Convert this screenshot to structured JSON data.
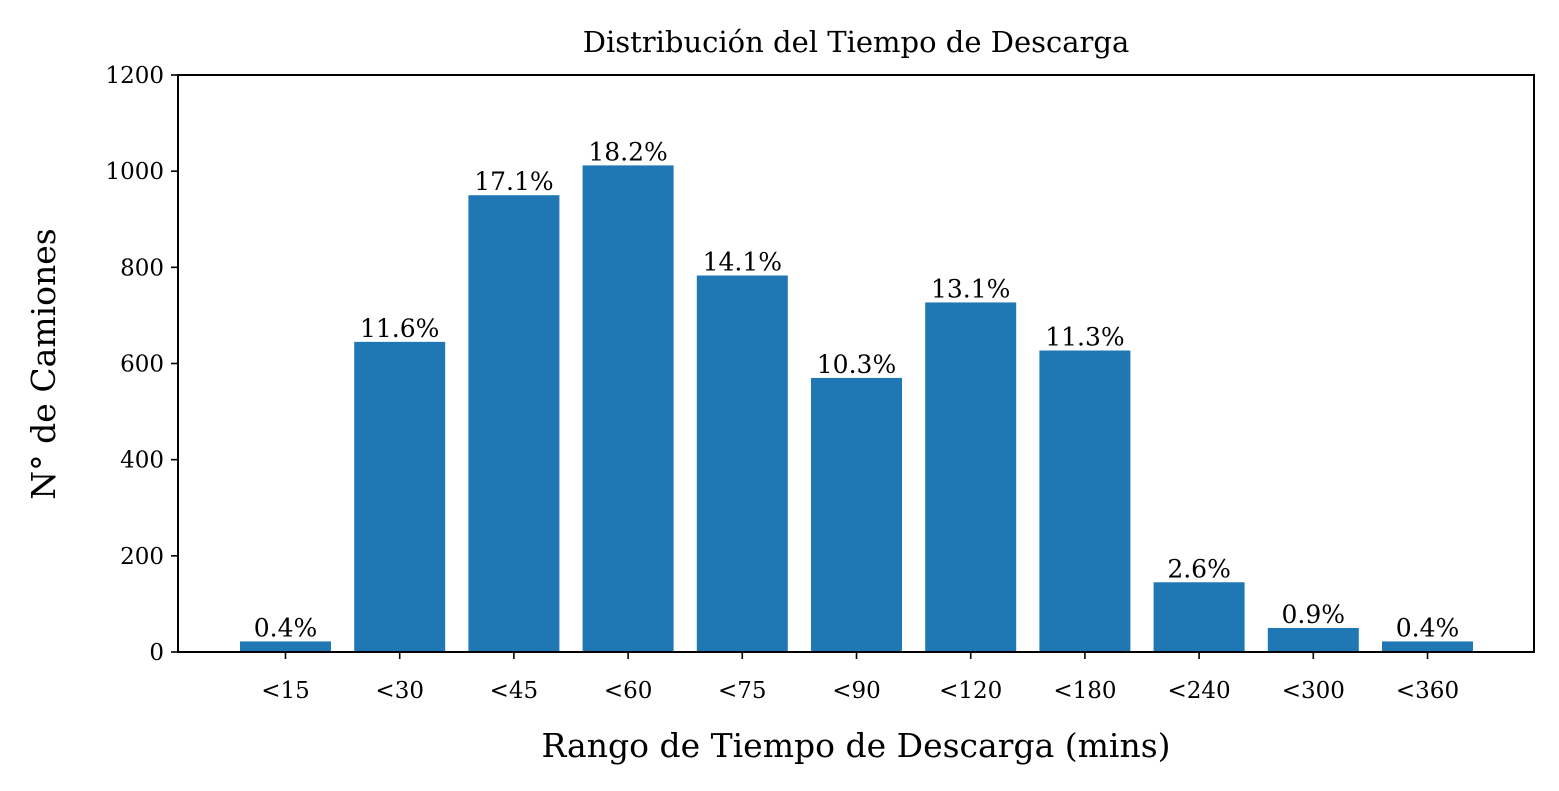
{
  "chart_data": {
    "type": "bar",
    "title": "Distribución del Tiempo de Descarga",
    "xlabel": "Rango de Tiempo de Descarga (mins)",
    "ylabel": "N° de Camiones",
    "categories": [
      "<15",
      "<30",
      "<45",
      "<60",
      "<75",
      "<90",
      "<120",
      "<180",
      "<240",
      "<300",
      "<360"
    ],
    "values": [
      22,
      645,
      950,
      1012,
      783,
      570,
      727,
      627,
      145,
      50,
      22
    ],
    "data_labels": [
      "0.4%",
      "11.6%",
      "17.1%",
      "18.2%",
      "14.1%",
      "10.3%",
      "13.1%",
      "11.3%",
      "2.6%",
      "0.9%",
      "0.4%"
    ],
    "ylim": [
      0,
      1200
    ],
    "yticks": [
      0,
      200,
      400,
      600,
      800,
      1000,
      1200
    ],
    "bar_color": "#1f77b4",
    "grid": false,
    "legend": "none"
  }
}
